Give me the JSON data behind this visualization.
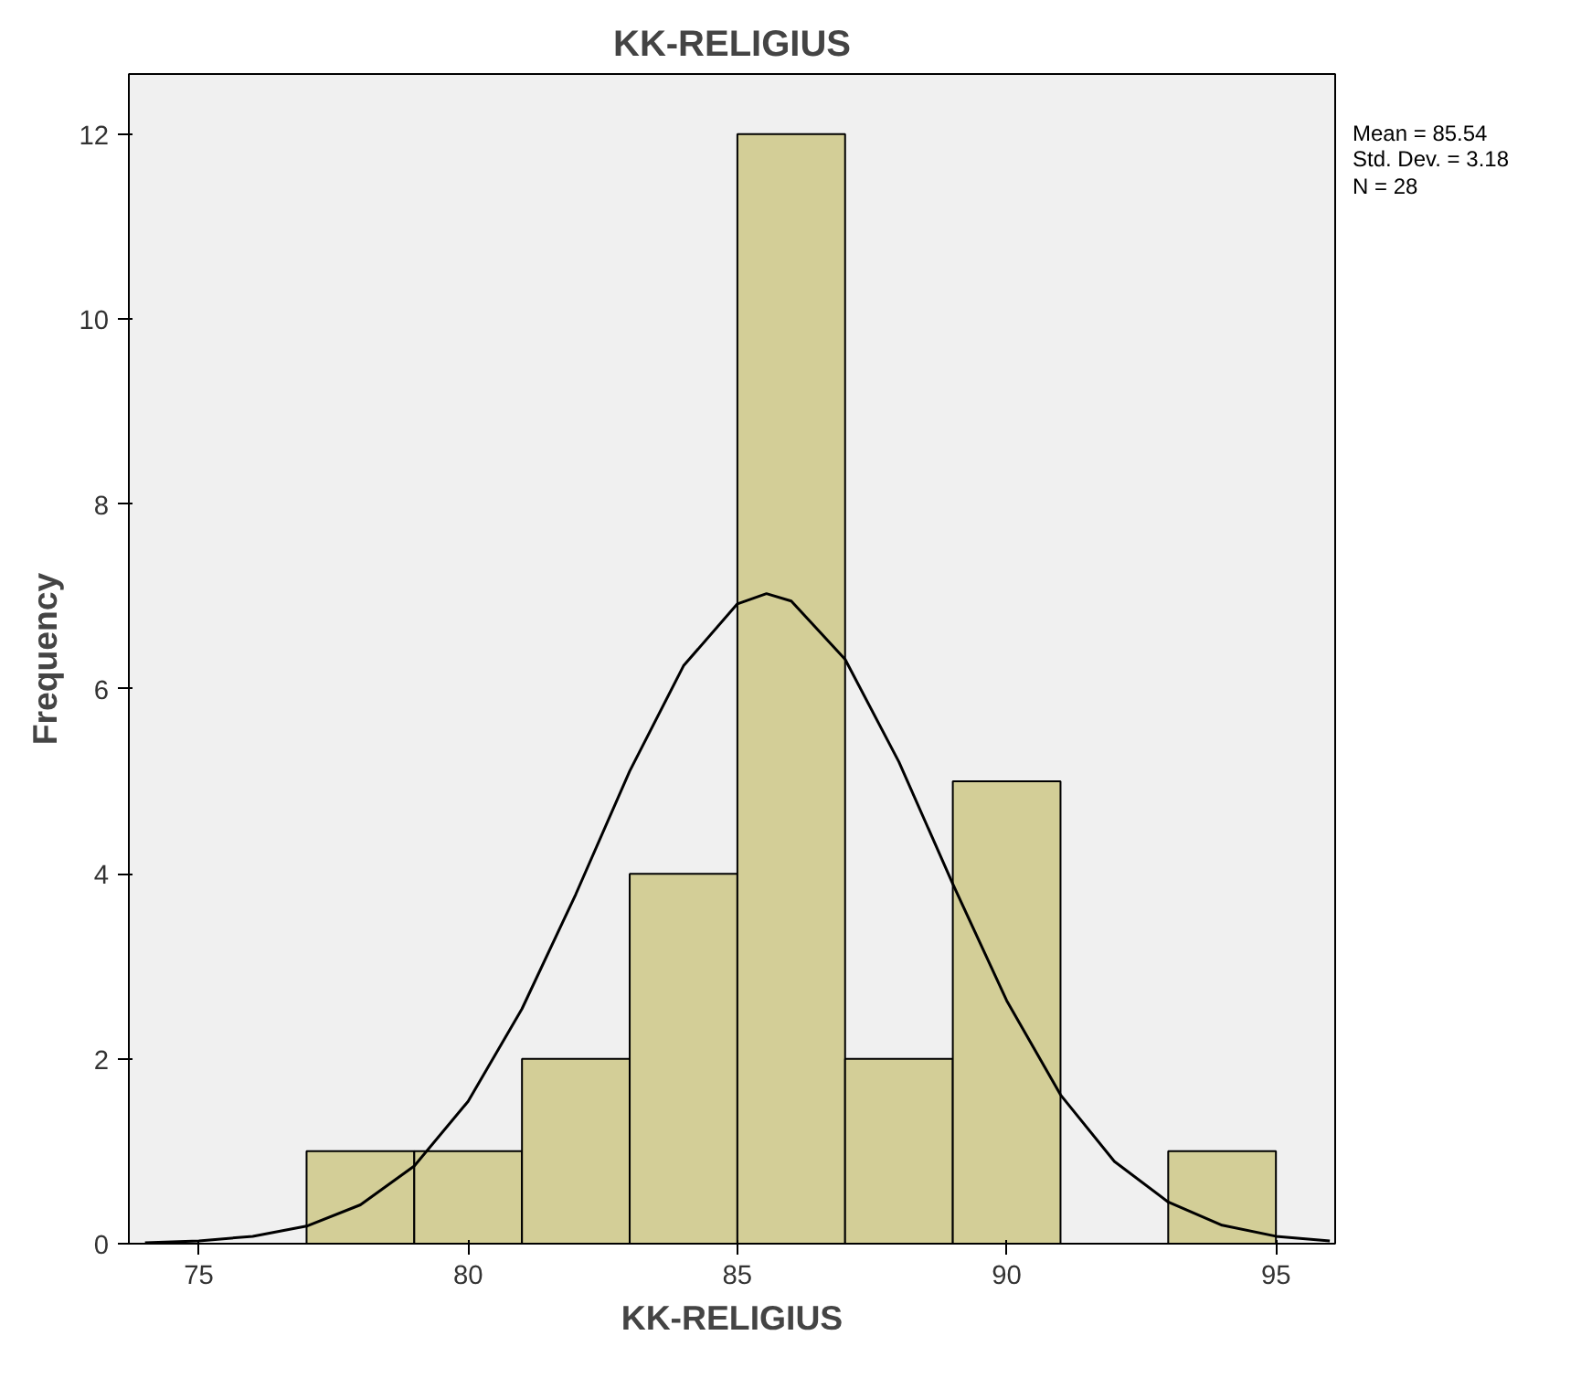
{
  "chart_data": {
    "type": "histogram",
    "title": "KK-RELIGIUS",
    "xlabel": "KK-RELIGIUS",
    "ylabel": "Frequency",
    "bins": [
      77,
      79,
      81,
      83,
      85,
      87,
      89,
      91,
      93,
      95
    ],
    "values": [
      1,
      1,
      2,
      4,
      12,
      2,
      5,
      0,
      1
    ],
    "color": "#d3ce97",
    "series": [
      {
        "type": "line",
        "color": "#000000",
        "x": [
          74,
          75,
          76,
          77,
          78,
          79,
          80,
          81,
          82,
          83,
          84,
          85,
          85.54,
          86,
          87,
          88,
          89,
          90,
          91,
          92,
          93,
          94,
          95,
          96
        ],
        "values": [
          0.01,
          0.03,
          0.08,
          0.19,
          0.42,
          0.84,
          1.54,
          2.54,
          3.78,
          5.11,
          6.25,
          6.92,
          7.03,
          6.95,
          6.32,
          5.21,
          3.89,
          2.63,
          1.61,
          0.89,
          0.45,
          0.2,
          0.08,
          0.03
        ]
      }
    ],
    "xlim": [
      73.7,
      96.1
    ],
    "ylim": [
      0,
      12.65
    ],
    "xticks": [
      75,
      80,
      85,
      90,
      95
    ],
    "yticks": [
      0,
      2,
      4,
      6,
      8,
      10,
      12
    ],
    "grid": false,
    "annotations": [
      "Mean = 85.54",
      "Std. Dev. = 3.18",
      "N = 28"
    ]
  }
}
